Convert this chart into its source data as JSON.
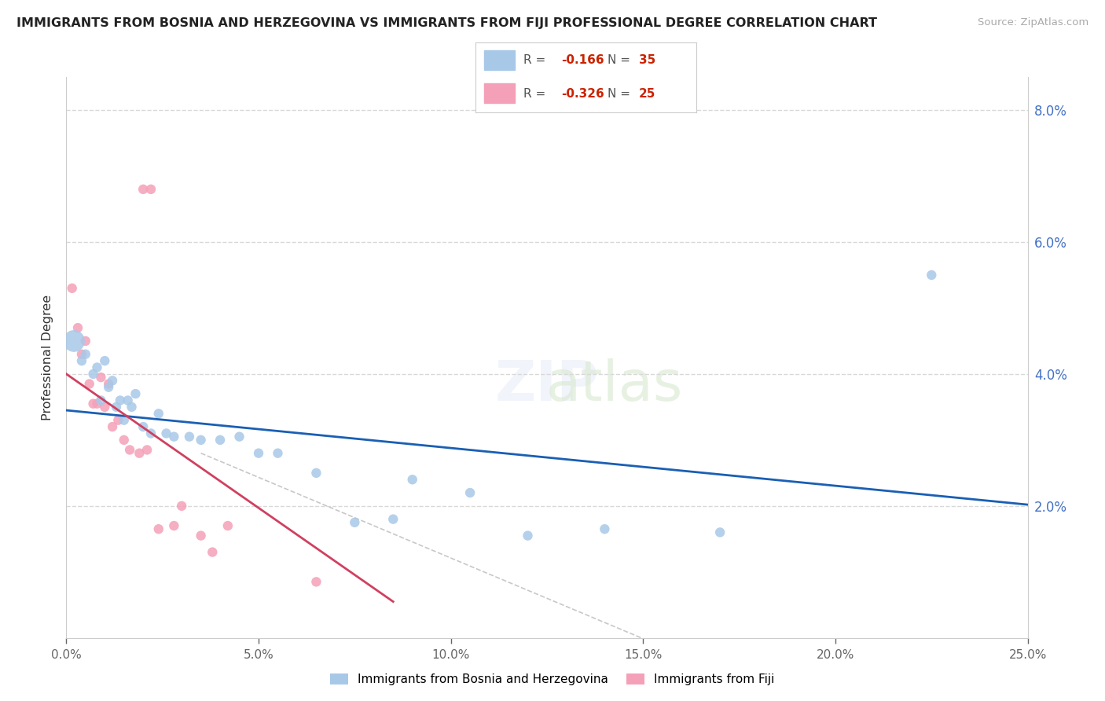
{
  "title": "IMMIGRANTS FROM BOSNIA AND HERZEGOVINA VS IMMIGRANTS FROM FIJI PROFESSIONAL DEGREE CORRELATION CHART",
  "source": "Source: ZipAtlas.com",
  "ylabel": "Professional Degree",
  "x_lim": [
    0.0,
    25.0
  ],
  "y_lim": [
    0.0,
    8.5
  ],
  "bosnia_R": -0.166,
  "bosnia_N": 35,
  "fiji_R": -0.326,
  "fiji_N": 25,
  "bosnia_color": "#a8c8e8",
  "fiji_color": "#f4a0b8",
  "bosnia_line_color": "#1a5fb4",
  "fiji_line_color": "#d04060",
  "grid_color": "#d8d8d8",
  "bg_color": "#ffffff",
  "right_tick_color": "#4472c4",
  "bosnia_x": [
    0.2,
    0.4,
    0.5,
    0.7,
    0.8,
    0.9,
    1.0,
    1.1,
    1.2,
    1.3,
    1.4,
    1.5,
    1.6,
    1.7,
    1.8,
    2.0,
    2.2,
    2.4,
    2.6,
    2.8,
    3.2,
    3.5,
    4.0,
    4.5,
    5.0,
    5.5,
    6.5,
    7.5,
    8.5,
    9.0,
    10.5,
    12.0,
    14.0,
    17.0,
    22.5
  ],
  "bosnia_y": [
    4.5,
    4.2,
    4.3,
    4.0,
    4.1,
    3.6,
    4.2,
    3.8,
    3.9,
    3.5,
    3.6,
    3.3,
    3.6,
    3.5,
    3.7,
    3.2,
    3.1,
    3.4,
    3.1,
    3.05,
    3.05,
    3.0,
    3.0,
    3.05,
    2.8,
    2.8,
    2.5,
    1.75,
    1.8,
    2.4,
    2.2,
    1.55,
    1.65,
    1.6,
    5.5
  ],
  "bosnia_sizes": [
    400,
    80,
    80,
    80,
    80,
    80,
    80,
    80,
    80,
    80,
    80,
    80,
    80,
    80,
    80,
    80,
    80,
    80,
    80,
    80,
    80,
    80,
    80,
    80,
    80,
    80,
    80,
    80,
    80,
    80,
    80,
    80,
    80,
    80,
    80
  ],
  "fiji_x": [
    0.15,
    0.3,
    0.4,
    0.5,
    0.6,
    0.7,
    0.8,
    0.9,
    1.0,
    1.1,
    1.2,
    1.35,
    1.5,
    1.65,
    1.9,
    2.1,
    2.4,
    2.8,
    3.0,
    3.5,
    4.2,
    2.0,
    2.2,
    3.8,
    6.5
  ],
  "fiji_y": [
    5.3,
    4.7,
    4.3,
    4.5,
    3.85,
    3.55,
    3.55,
    3.95,
    3.5,
    3.85,
    3.2,
    3.3,
    3.0,
    2.85,
    2.8,
    2.85,
    1.65,
    1.7,
    2.0,
    1.55,
    1.7,
    6.8,
    6.8,
    1.3,
    0.85
  ],
  "fiji_sizes": [
    80,
    80,
    80,
    80,
    80,
    80,
    80,
    80,
    80,
    80,
    80,
    80,
    80,
    80,
    80,
    80,
    80,
    80,
    80,
    80,
    80,
    80,
    80,
    80,
    80
  ],
  "bosnia_trend": [
    0.0,
    25.0,
    3.45,
    2.02
  ],
  "fiji_trend": [
    0.0,
    8.5,
    4.0,
    0.55
  ],
  "gray_dash": [
    3.5,
    17.0,
    2.8,
    -0.5
  ],
  "legend_r_color": "#cc2200",
  "legend_n_color": "#cc2200"
}
